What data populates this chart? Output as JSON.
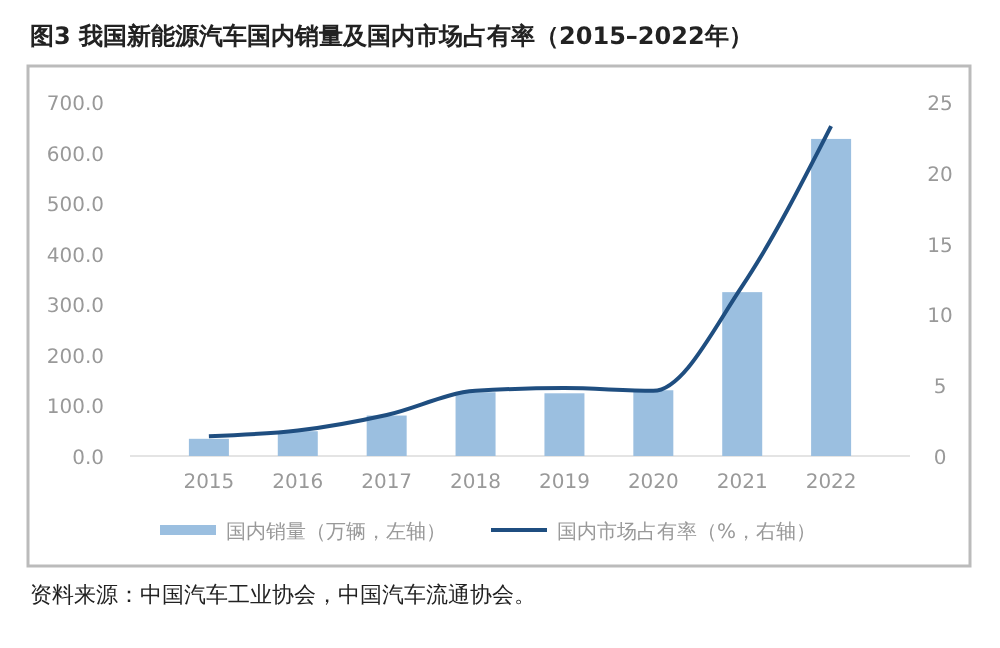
{
  "chart_data": {
    "type": "bar",
    "title": "图3  我国新能源汽车国内销量及国内市场占有率（2015–2022年）",
    "categories": [
      "2015",
      "2016",
      "2017",
      "2018",
      "2019",
      "2020",
      "2021",
      "2022"
    ],
    "series": [
      {
        "name": "国内销量（万辆，左轴）",
        "color": "#9bbfe0",
        "values": [
          34,
          49,
          80,
          126,
          124,
          130,
          324,
          627
        ]
      },
      {
        "name": "国内市场占有率（%，右轴）",
        "type": "line",
        "axis": "y2",
        "color": "#1f4e80",
        "values": [
          1.4,
          1.8,
          2.9,
          4.6,
          4.8,
          4.6,
          12.0,
          23.3
        ]
      }
    ],
    "ylim": [
      0,
      700
    ],
    "yticks": [
      {
        "value": 0,
        "label": "0.0"
      },
      {
        "value": 100,
        "label": "100.0"
      },
      {
        "value": 200,
        "label": "200.0"
      },
      {
        "value": 300,
        "label": "300.0"
      },
      {
        "value": 400,
        "label": "400.0"
      },
      {
        "value": 500,
        "label": "500.0"
      },
      {
        "value": 600,
        "label": "600.0"
      },
      {
        "value": 700,
        "label": "700.0"
      }
    ],
    "y2lim": [
      0,
      25
    ],
    "y2ticks": [
      0,
      5,
      10,
      15,
      20,
      25
    ],
    "grid": false,
    "legend": "bottom",
    "marker": "none",
    "line_style": "solid",
    "annotations": [
      "资料来源：中国汽车工业协会，中国汽车流通协会。"
    ]
  }
}
